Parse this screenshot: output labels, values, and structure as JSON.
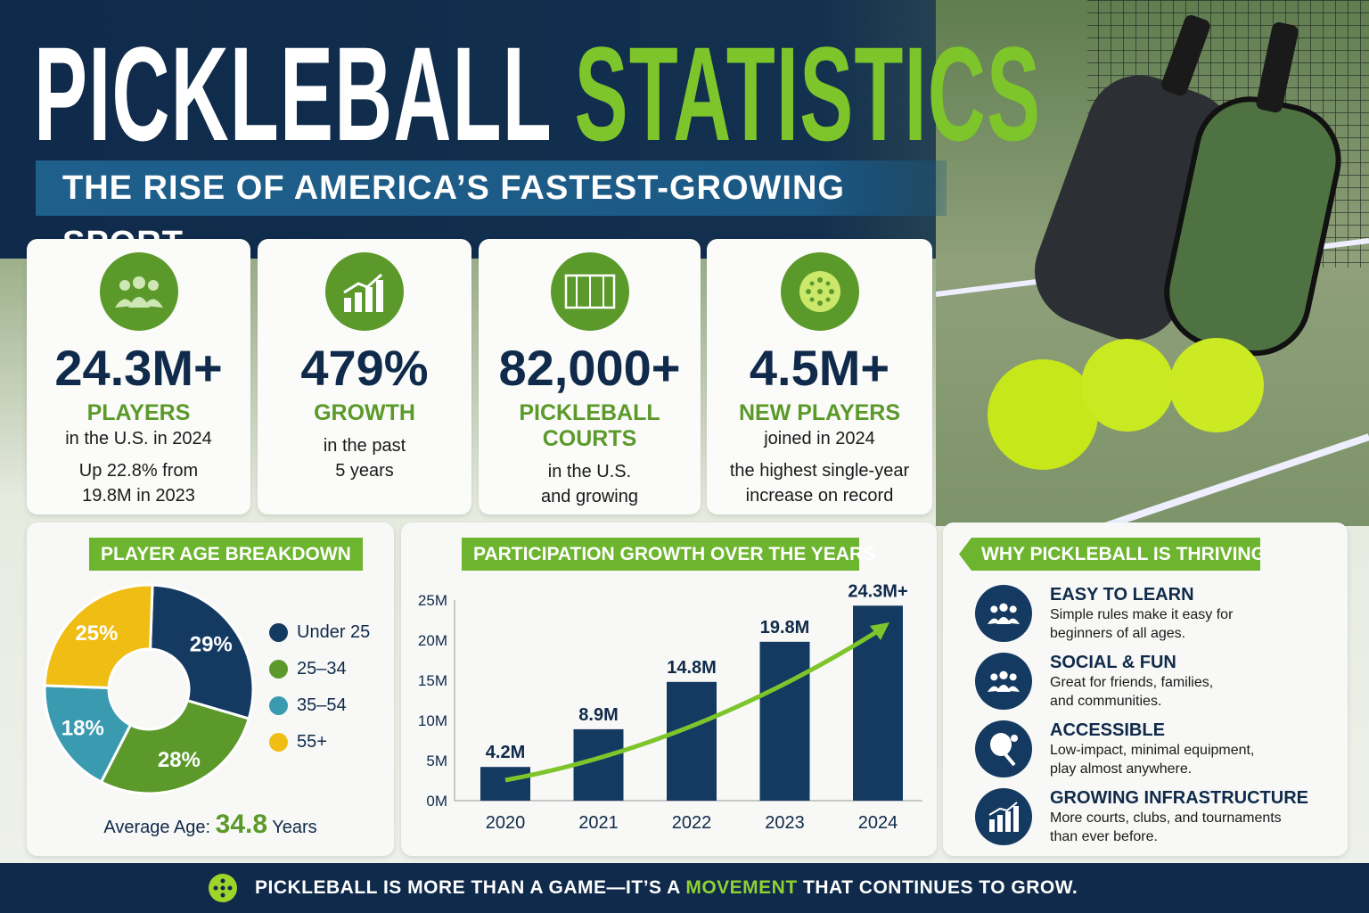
{
  "header": {
    "title_part1": "PICKLEBALL",
    "title_part2": "STATISTICS",
    "subtitle": "THE RISE OF AMERICA’S FASTEST-GROWING SPORT"
  },
  "stats": [
    {
      "icon": "people-icon",
      "value": "24.3M+",
      "label": "PLAYERS",
      "line1": "in the U.S. in 2024",
      "line2": "Up 22.8% from",
      "line3": "19.8M in 2023"
    },
    {
      "icon": "growth-chart-icon",
      "value": "479%",
      "label": "GROWTH",
      "line1": "in the past",
      "line2": "5 years"
    },
    {
      "icon": "court-icon",
      "value": "82,000+",
      "label": "PICKLEBALL COURTS",
      "line1": "in the U.S.",
      "line2": "and growing"
    },
    {
      "icon": "pickleball-icon",
      "value": "4.5M+",
      "label": "NEW PLAYERS",
      "line1": "joined in 2024",
      "line2": "the highest single-year",
      "line3": "increase on record"
    }
  ],
  "age": {
    "title": "PLAYER AGE BREAKDOWN",
    "avg_label": "Average Age:",
    "avg_value": "34.8",
    "avg_unit": "Years"
  },
  "growth": {
    "title": "PARTICIPATION GROWTH OVER THE YEARS"
  },
  "why": {
    "title": "WHY PICKLEBALL IS THRIVING",
    "items": [
      {
        "icon": "people-icon",
        "title": "EASY TO LEARN",
        "line1": "Simple rules make it easy for",
        "line2": "beginners of all ages."
      },
      {
        "icon": "people-icon",
        "title": "SOCIAL & FUN",
        "line1": "Great for friends, families,",
        "line2": "and communities."
      },
      {
        "icon": "paddle-icon",
        "title": "ACCESSIBLE",
        "line1": "Low-impact, minimal equipment,",
        "line2": "play almost anywhere."
      },
      {
        "icon": "growth-chart-icon",
        "title": "GROWING INFRASTRUCTURE",
        "line1": "More courts, clubs, and tournaments",
        "line2": "than ever before."
      }
    ]
  },
  "footer": {
    "part1": "PICKLEBALL IS MORE THAN A GAME—IT’S A ",
    "highlight": "MOVEMENT",
    "part2": " THAT CONTINUES TO GROW."
  },
  "colors": {
    "navy": "#0f2a4a",
    "green": "#5b9a2a",
    "lime": "#7dc52a",
    "teal": "#3a9bb0",
    "yellow": "#f0bd14"
  },
  "chart_data": [
    {
      "type": "pie",
      "title": "PLAYER AGE BREAKDOWN",
      "donut": true,
      "legend": "right",
      "categories": [
        "Under 25",
        "25–34",
        "35–54",
        "55+"
      ],
      "values": [
        29,
        28,
        18,
        25
      ],
      "labels": [
        "29%",
        "28%",
        "18%",
        "25%"
      ],
      "colors": [
        "#153a62",
        "#5b9a2a",
        "#3a9bb0",
        "#f0bd14"
      ]
    },
    {
      "type": "bar",
      "title": "PARTICIPATION GROWTH OVER THE YEARS",
      "categories": [
        "2020",
        "2021",
        "2022",
        "2023",
        "2024"
      ],
      "values": [
        4.2,
        8.9,
        14.8,
        19.8,
        24.3
      ],
      "labels": [
        "4.2M",
        "8.9M",
        "14.8M",
        "19.8M",
        "24.3M+"
      ],
      "ylim": [
        0,
        25
      ],
      "yticks": [
        "0M",
        "5M",
        "10M",
        "15M",
        "20M",
        "25M"
      ],
      "trend_arrow": true,
      "grid": false,
      "color": "#153a62"
    }
  ]
}
